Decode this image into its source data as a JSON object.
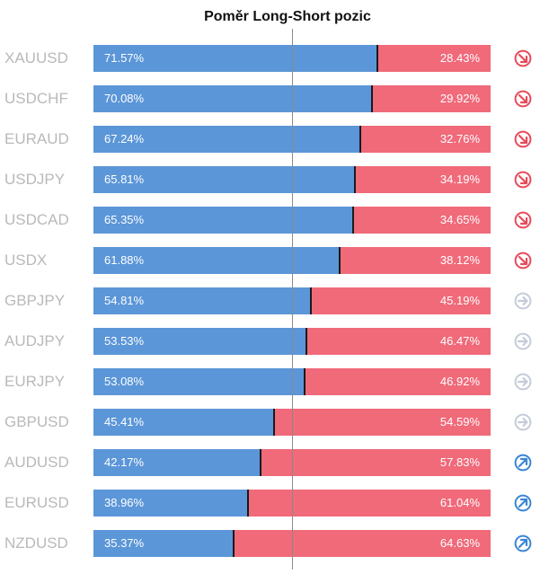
{
  "chart_data": {
    "type": "bar",
    "title": "Poměr Long-Short pozic",
    "categories": [
      "XAUUSD",
      "USDCHF",
      "EURAUD",
      "USDJPY",
      "USDCAD",
      "USDX",
      "GBPJPY",
      "AUDJPY",
      "EURJPY",
      "GBPUSD",
      "AUDUSD",
      "EURUSD",
      "NZDUSD"
    ],
    "series": [
      {
        "values": [
          71.57,
          70.08,
          67.24,
          65.81,
          65.35,
          61.88,
          54.81,
          53.53,
          53.08,
          45.41,
          42.17,
          38.96,
          35.37
        ]
      },
      {
        "values": [
          28.43,
          29.92,
          32.76,
          34.19,
          34.65,
          38.12,
          45.19,
          46.47,
          46.92,
          54.59,
          57.83,
          61.04,
          64.63
        ]
      }
    ],
    "value_labels": {
      "long": [
        "71.57%",
        "70.08%",
        "67.24%",
        "65.81%",
        "65.35%",
        "61.88%",
        "54.81%",
        "53.53%",
        "53.08%",
        "45.41%",
        "42.17%",
        "38.96%",
        "35.37%"
      ],
      "short": [
        "28.43%",
        "29.92%",
        "32.76%",
        "34.19%",
        "34.65%",
        "38.12%",
        "45.19%",
        "46.47%",
        "46.92%",
        "54.59%",
        "57.83%",
        "61.04%",
        "64.63%"
      ]
    },
    "signal_icons": [
      "arrow-down-right-icon",
      "arrow-down-right-icon",
      "arrow-down-right-icon",
      "arrow-down-right-icon",
      "arrow-down-right-icon",
      "arrow-down-right-icon",
      "arrow-right-icon",
      "arrow-right-icon",
      "arrow-right-icon",
      "arrow-right-icon",
      "arrow-up-right-icon",
      "arrow-up-right-icon",
      "arrow-up-right-icon"
    ],
    "stacked": true,
    "xlim": [
      0,
      100
    ],
    "reference_line": 50,
    "colors": {
      "long": "#5b96d8",
      "short": "#f06a7a",
      "bearish_icon": "#e84a5a",
      "neutral_icon": "#c5ccd8",
      "bullish_icon": "#3a86d4"
    }
  }
}
